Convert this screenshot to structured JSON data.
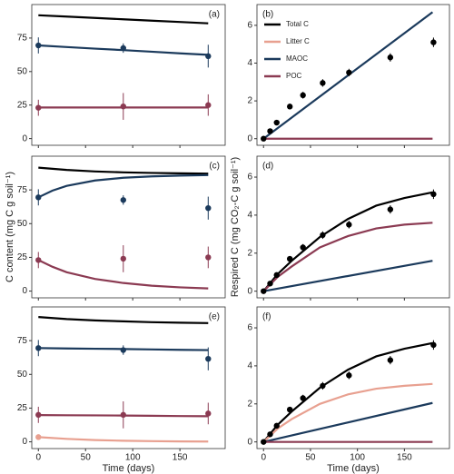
{
  "chart_data": [
    {
      "type": "line",
      "label": "(a)",
      "xlim": [
        -7,
        198
      ],
      "ylim": [
        -5,
        100
      ],
      "xticks": [
        0,
        50,
        100,
        150
      ],
      "yticks": [
        0,
        25,
        50,
        75
      ],
      "series": [
        {
          "color": "#000000",
          "x": [
            0,
            30,
            60,
            90,
            120,
            150,
            180
          ],
          "values": [
            92,
            91,
            90,
            89,
            88,
            87,
            86
          ]
        },
        {
          "color": "#1b3a5c",
          "x": [
            0,
            30,
            60,
            90,
            120,
            150,
            180
          ],
          "values": [
            69.5,
            68.3,
            67.1,
            66,
            64.8,
            63.6,
            62.5
          ]
        },
        {
          "color": "#8b3a52",
          "x": [
            0,
            30,
            60,
            90,
            120,
            150,
            180
          ],
          "values": [
            23.2,
            23.2,
            23.2,
            23.2,
            23.2,
            23.2,
            23.2
          ]
        }
      ],
      "points": [
        {
          "color": "#1b3a5c",
          "x": [
            0,
            90,
            180
          ],
          "values": [
            69.5,
            67.5,
            61.5
          ],
          "errors": [
            6,
            3.5,
            8.5
          ]
        },
        {
          "color": "#8b3a52",
          "x": [
            0,
            90,
            180
          ],
          "values": [
            23,
            24,
            25
          ],
          "errors": [
            6,
            10,
            8
          ]
        }
      ]
    },
    {
      "type": "line",
      "label": "(b)",
      "xlim": [
        -7,
        198
      ],
      "ylim": [
        -0.35,
        7.1
      ],
      "xticks": [
        0,
        50,
        100,
        150
      ],
      "yticks": [
        0,
        2,
        4,
        6
      ],
      "legend": "top-left",
      "series": [
        {
          "name": "Total C",
          "color": "#000000",
          "x": [],
          "values": []
        },
        {
          "name": "Litter C",
          "color": "#e8a090",
          "x": [],
          "values": []
        },
        {
          "name": "MAOC",
          "color": "#1b3a5c",
          "x": [
            0,
            180
          ],
          "values": [
            0,
            6.7
          ]
        },
        {
          "name": "POC",
          "color": "#8b3a52",
          "x": [
            0,
            180
          ],
          "values": [
            0,
            0
          ]
        }
      ],
      "points": [
        {
          "color": "#000000",
          "x": [
            0,
            7,
            14,
            28,
            42,
            63,
            91,
            135,
            181
          ],
          "values": [
            0,
            0.4,
            0.85,
            1.7,
            2.3,
            2.95,
            3.5,
            4.3,
            5.1
          ],
          "errors": [
            0.05,
            0.1,
            0.12,
            0.15,
            0.18,
            0.2,
            0.2,
            0.22,
            0.25
          ]
        }
      ]
    },
    {
      "type": "line",
      "label": "(c)",
      "xlim": [
        -7,
        198
      ],
      "ylim": [
        -5,
        100
      ],
      "xticks": [
        0,
        50,
        100,
        150
      ],
      "yticks": [
        0,
        25,
        50,
        75
      ],
      "ylabel": "C content (mg C g soil⁻¹)",
      "series": [
        {
          "color": "#000000",
          "x": [
            0,
            30,
            60,
            90,
            120,
            150,
            180
          ],
          "values": [
            91.5,
            89.8,
            88.7,
            88,
            87.6,
            87.3,
            87.1
          ]
        },
        {
          "color": "#1b3a5c",
          "x": [
            0,
            15,
            30,
            60,
            90,
            120,
            150,
            180
          ],
          "values": [
            69.5,
            74.5,
            78,
            82,
            84,
            85,
            85.6,
            86
          ]
        },
        {
          "color": "#8b3a52",
          "x": [
            0,
            15,
            30,
            60,
            90,
            120,
            150,
            180
          ],
          "values": [
            23,
            18,
            14,
            9,
            6,
            4,
            2.8,
            2
          ]
        }
      ],
      "points": [
        {
          "color": "#1b3a5c",
          "x": [
            0,
            90,
            180
          ],
          "values": [
            69.5,
            67.5,
            61.5
          ],
          "errors": [
            6,
            3.5,
            8.5
          ]
        },
        {
          "color": "#8b3a52",
          "x": [
            0,
            90,
            180
          ],
          "values": [
            23,
            24,
            25
          ],
          "errors": [
            6,
            10,
            8
          ]
        }
      ]
    },
    {
      "type": "line",
      "label": "(d)",
      "xlim": [
        -7,
        198
      ],
      "ylim": [
        -0.35,
        7.1
      ],
      "xticks": [
        0,
        50,
        100,
        150
      ],
      "yticks": [
        0,
        2,
        4,
        6
      ],
      "ylabel": "Respired C (mg CO₂-C g soil⁻¹)",
      "series": [
        {
          "color": "#000000",
          "x": [
            0,
            15,
            30,
            60,
            90,
            120,
            150,
            180
          ],
          "values": [
            0,
            0.9,
            1.6,
            2.85,
            3.8,
            4.5,
            4.9,
            5.2
          ]
        },
        {
          "color": "#8b3a52",
          "x": [
            0,
            15,
            30,
            60,
            90,
            120,
            150,
            180
          ],
          "values": [
            0,
            0.75,
            1.3,
            2.3,
            2.9,
            3.3,
            3.5,
            3.6
          ]
        },
        {
          "color": "#1b3a5c",
          "x": [
            0,
            180
          ],
          "values": [
            0,
            1.6
          ]
        }
      ],
      "points": [
        {
          "color": "#000000",
          "x": [
            0,
            7,
            14,
            28,
            42,
            63,
            91,
            135,
            181
          ],
          "values": [
            0,
            0.4,
            0.85,
            1.7,
            2.3,
            2.95,
            3.5,
            4.3,
            5.1
          ],
          "errors": [
            0.05,
            0.1,
            0.12,
            0.15,
            0.18,
            0.2,
            0.2,
            0.22,
            0.25
          ]
        }
      ]
    },
    {
      "type": "line",
      "label": "(e)",
      "xlim": [
        -7,
        198
      ],
      "ylim": [
        -5,
        100
      ],
      "xticks": [
        0,
        50,
        100,
        150
      ],
      "yticks": [
        0,
        25,
        50,
        75
      ],
      "xlabel": "Time (days)",
      "series": [
        {
          "color": "#000000",
          "x": [
            0,
            30,
            60,
            90,
            120,
            150,
            180
          ],
          "values": [
            92.5,
            91,
            90,
            89.3,
            88.7,
            88.3,
            88
          ]
        },
        {
          "color": "#1b3a5c",
          "x": [
            0,
            30,
            60,
            90,
            120,
            150,
            180
          ],
          "values": [
            69.5,
            69.2,
            69,
            68.8,
            68.5,
            68.2,
            68
          ]
        },
        {
          "color": "#8b3a52",
          "x": [
            0,
            30,
            60,
            90,
            120,
            150,
            180
          ],
          "values": [
            19.8,
            19.7,
            19.6,
            19.5,
            19.3,
            19.1,
            19
          ]
        },
        {
          "color": "#e8a090",
          "x": [
            0,
            30,
            60,
            90,
            120,
            150,
            180
          ],
          "values": [
            3.5,
            2.2,
            1.3,
            0.8,
            0.5,
            0.3,
            0.2
          ]
        }
      ],
      "points": [
        {
          "color": "#1b3a5c",
          "x": [
            0,
            90,
            180
          ],
          "values": [
            69.5,
            68,
            61.5
          ],
          "errors": [
            6,
            3.5,
            8.5
          ]
        },
        {
          "color": "#8b3a52",
          "x": [
            0,
            90,
            180
          ],
          "values": [
            20,
            20,
            21
          ],
          "errors": [
            6,
            10,
            8
          ]
        },
        {
          "color": "#e8a090",
          "x": [
            0
          ],
          "values": [
            3.5
          ],
          "errors": [
            1
          ]
        }
      ]
    },
    {
      "type": "line",
      "label": "(f)",
      "xlim": [
        -7,
        198
      ],
      "ylim": [
        -0.35,
        7.1
      ],
      "xticks": [
        0,
        50,
        100,
        150
      ],
      "yticks": [
        0,
        2,
        4,
        6
      ],
      "xlabel": "Time (days)",
      "series": [
        {
          "color": "#000000",
          "x": [
            0,
            15,
            30,
            60,
            90,
            120,
            150,
            180
          ],
          "values": [
            0,
            0.9,
            1.6,
            2.85,
            3.8,
            4.5,
            4.9,
            5.2
          ]
        },
        {
          "color": "#e8a090",
          "x": [
            0,
            15,
            30,
            60,
            90,
            120,
            150,
            180
          ],
          "values": [
            0,
            0.7,
            1.2,
            2,
            2.5,
            2.8,
            2.95,
            3.05
          ]
        },
        {
          "color": "#1b3a5c",
          "x": [
            0,
            180
          ],
          "values": [
            0,
            2.05
          ]
        },
        {
          "color": "#8b3a52",
          "x": [
            0,
            180
          ],
          "values": [
            0,
            0
          ]
        }
      ],
      "points": [
        {
          "color": "#000000",
          "x": [
            0,
            7,
            14,
            28,
            42,
            63,
            91,
            135,
            181
          ],
          "values": [
            0,
            0.4,
            0.85,
            1.7,
            2.3,
            2.95,
            3.5,
            4.3,
            5.1
          ],
          "errors": [
            0.05,
            0.1,
            0.12,
            0.15,
            0.18,
            0.2,
            0.2,
            0.22,
            0.25
          ]
        }
      ]
    }
  ]
}
